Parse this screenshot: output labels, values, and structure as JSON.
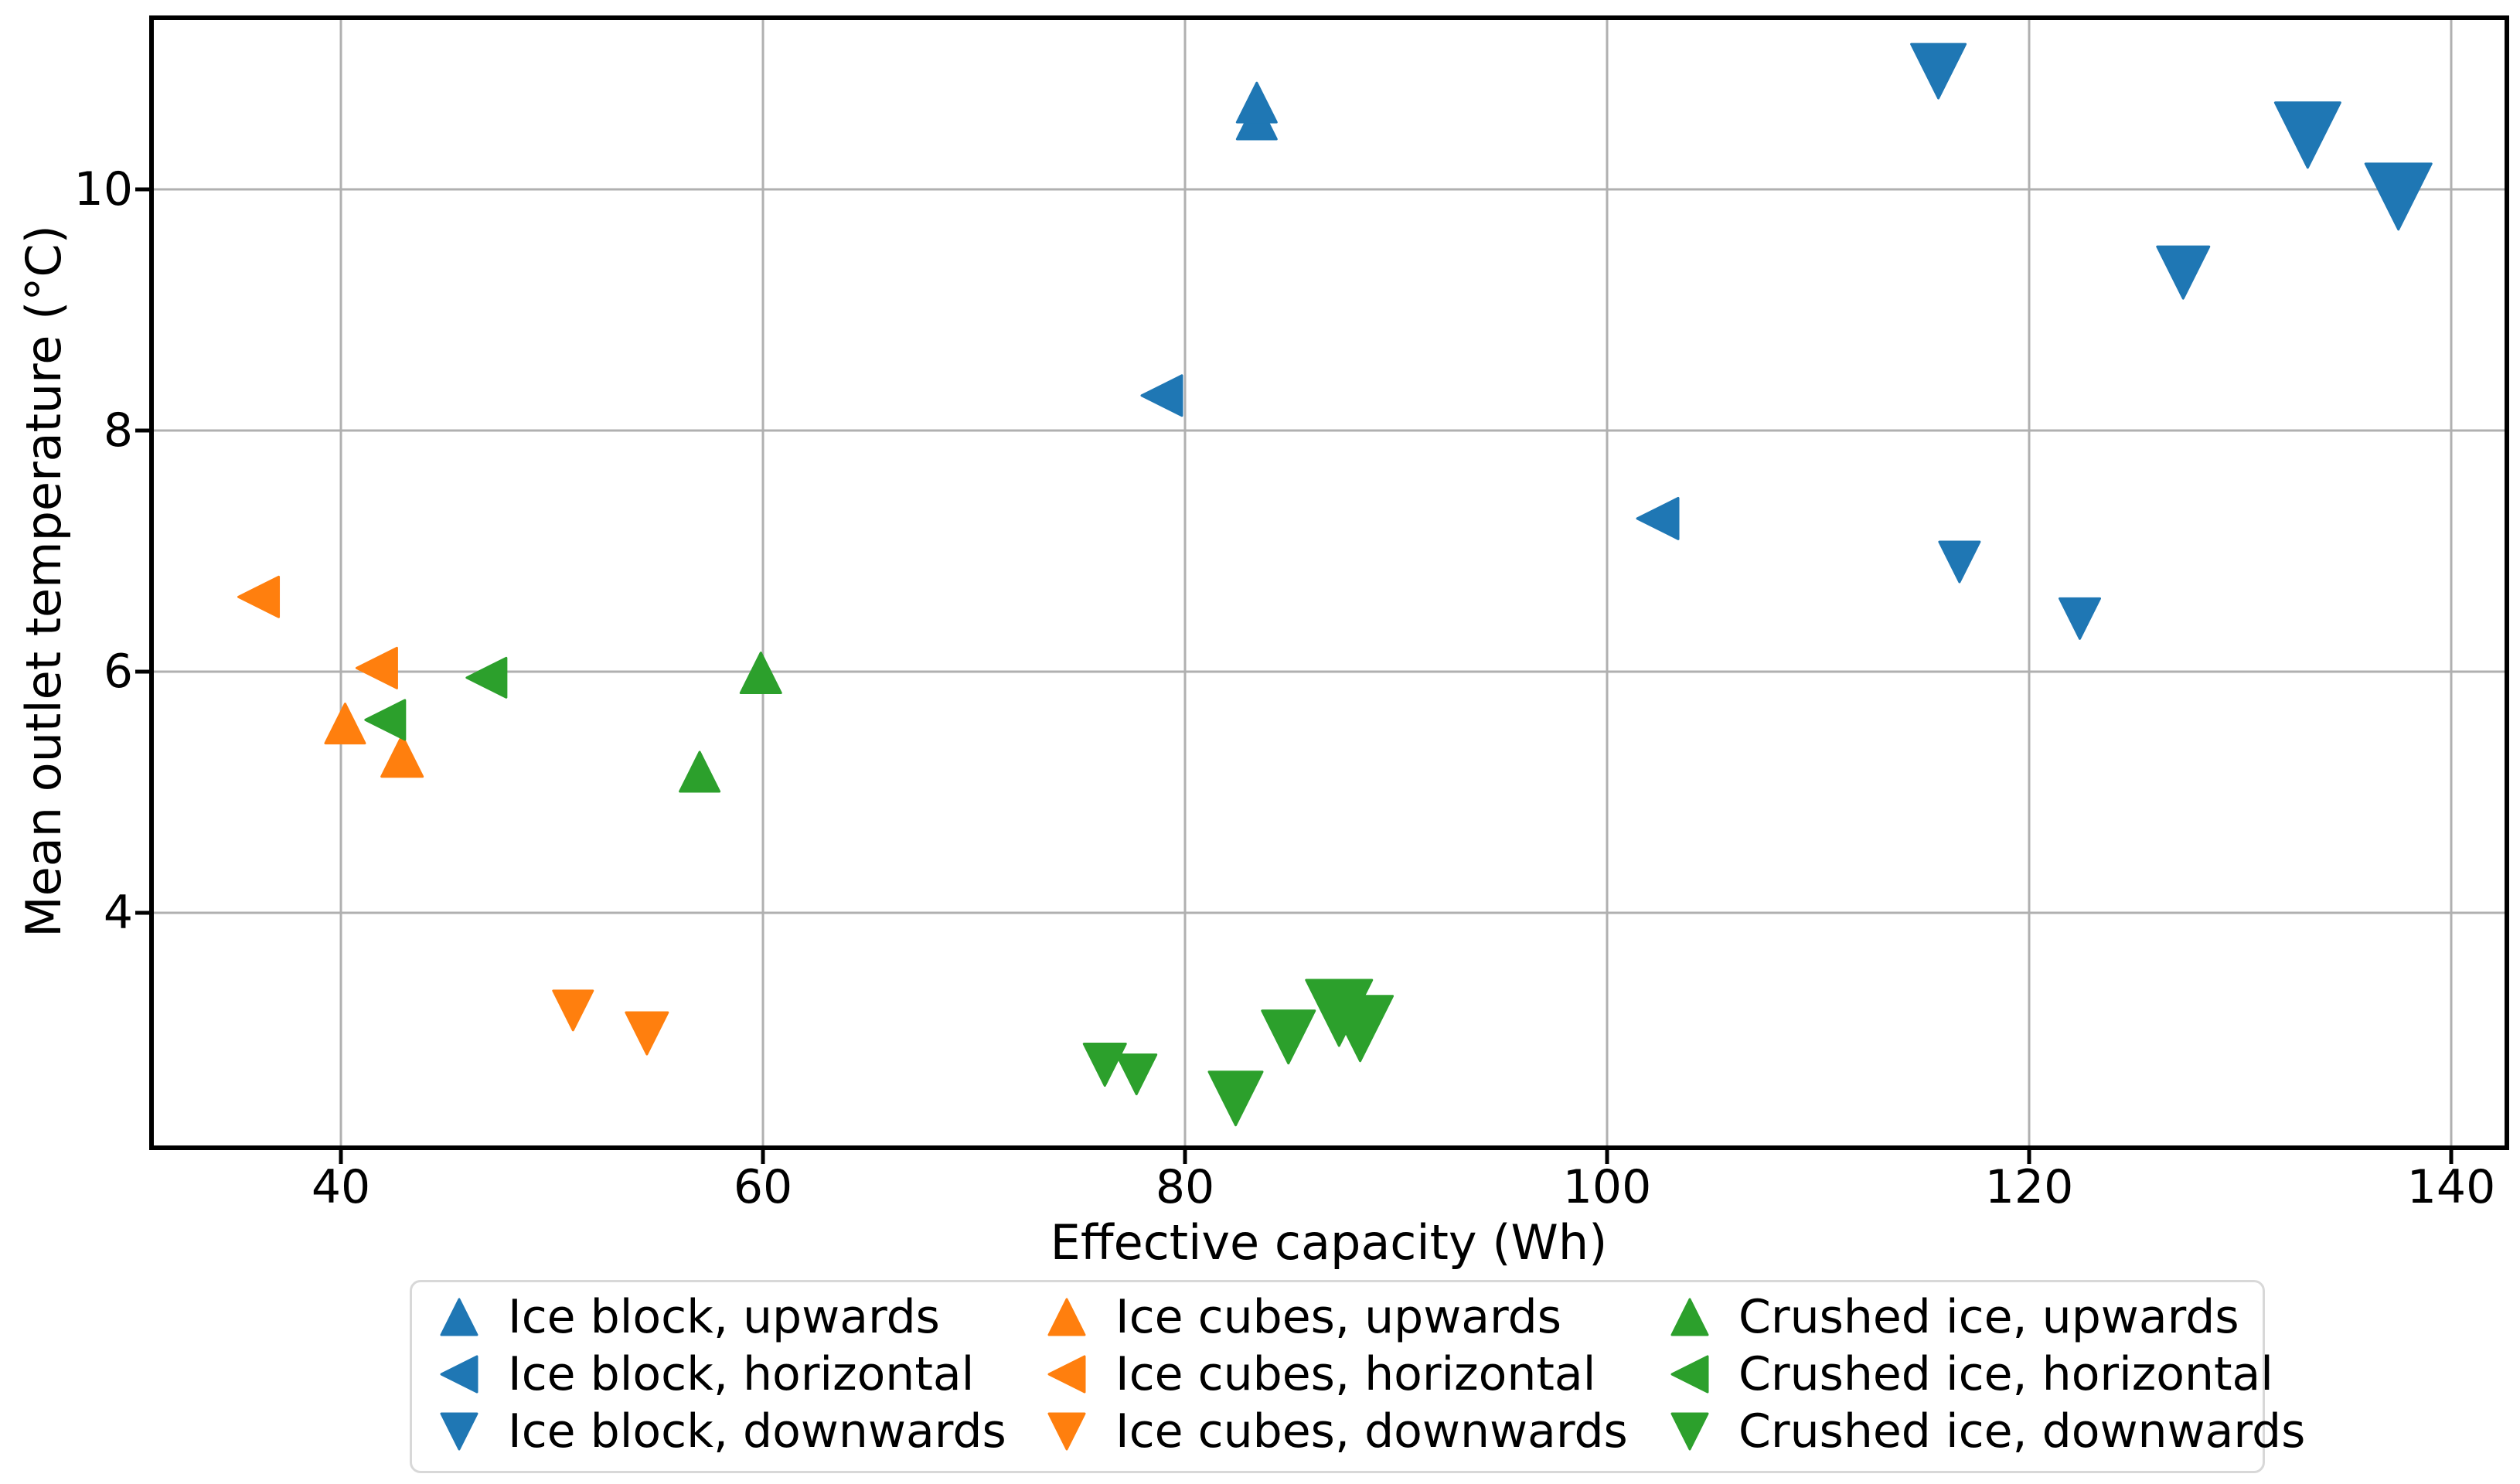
{
  "chart_data": {
    "type": "scatter",
    "title": "",
    "xlabel": "Effective capacity (Wh)",
    "ylabel": "Mean outlet temperature (°C)",
    "xlim": [
      31.0,
      142.6
    ],
    "ylim": [
      2.05,
      11.44
    ],
    "xticks": [
      40,
      60,
      80,
      100,
      120,
      140
    ],
    "yticks": [
      4,
      6,
      8,
      10
    ],
    "grid": true,
    "grid_color": "#b0b0b0",
    "legend_position": "below-axis, 3 columns",
    "series": [
      {
        "name": "Ice block, upwards",
        "color": "#1f77b4",
        "marker": "triangle-up",
        "points": [
          {
            "x": 83.4,
            "y": 10.58,
            "ms": 51
          },
          {
            "x": 83.4,
            "y": 10.72,
            "ms": 51
          }
        ]
      },
      {
        "name": "Ice block, horizontal",
        "color": "#1f77b4",
        "marker": "triangle-left",
        "points": [
          {
            "x": 78.9,
            "y": 8.29,
            "ms": 52
          },
          {
            "x": 102.4,
            "y": 7.27,
            "ms": 53
          }
        ]
      },
      {
        "name": "Ice block, downwards",
        "color": "#1f77b4",
        "marker": "triangle-down",
        "points": [
          {
            "x": 115.7,
            "y": 10.98,
            "ms": 70
          },
          {
            "x": 116.7,
            "y": 6.91,
            "ms": 52
          },
          {
            "x": 122.4,
            "y": 6.44,
            "ms": 52
          },
          {
            "x": 127.3,
            "y": 9.31,
            "ms": 67
          },
          {
            "x": 133.2,
            "y": 10.45,
            "ms": 84
          },
          {
            "x": 137.5,
            "y": 9.94,
            "ms": 85
          }
        ]
      },
      {
        "name": "Ice cubes, upwards",
        "color": "#ff7f0e",
        "marker": "triangle-up",
        "points": [
          {
            "x": 40.2,
            "y": 5.57,
            "ms": 51
          },
          {
            "x": 42.9,
            "y": 5.3,
            "ms": 53
          }
        ]
      },
      {
        "name": "Ice cubes, horizontal",
        "color": "#ff7f0e",
        "marker": "triangle-left",
        "points": [
          {
            "x": 36.1,
            "y": 6.62,
            "ms": 52
          },
          {
            "x": 41.7,
            "y": 6.03,
            "ms": 52
          }
        ]
      },
      {
        "name": "Ice cubes, downwards",
        "color": "#ff7f0e",
        "marker": "triangle-down",
        "points": [
          {
            "x": 51.0,
            "y": 3.19,
            "ms": 51
          },
          {
            "x": 54.5,
            "y": 3.0,
            "ms": 54
          }
        ]
      },
      {
        "name": "Crushed ice, upwards",
        "color": "#2ca02c",
        "marker": "triangle-up",
        "points": [
          {
            "x": 57.0,
            "y": 5.17,
            "ms": 51
          },
          {
            "x": 59.9,
            "y": 5.99,
            "ms": 52
          }
        ]
      },
      {
        "name": "Crushed ice, horizontal",
        "color": "#2ca02c",
        "marker": "triangle-left",
        "points": [
          {
            "x": 42.1,
            "y": 5.6,
            "ms": 51
          },
          {
            "x": 46.9,
            "y": 5.95,
            "ms": 51
          }
        ]
      },
      {
        "name": "Crushed ice, downwards",
        "color": "#2ca02c",
        "marker": "triangle-down",
        "points": [
          {
            "x": 77.7,
            "y": 2.66,
            "ms": 51
          },
          {
            "x": 76.2,
            "y": 2.74,
            "ms": 54
          },
          {
            "x": 82.4,
            "y": 2.46,
            "ms": 69
          },
          {
            "x": 84.9,
            "y": 2.97,
            "ms": 68
          },
          {
            "x": 88.3,
            "y": 3.04,
            "ms": 84
          },
          {
            "x": 87.3,
            "y": 3.17,
            "ms": 85
          }
        ]
      }
    ]
  }
}
